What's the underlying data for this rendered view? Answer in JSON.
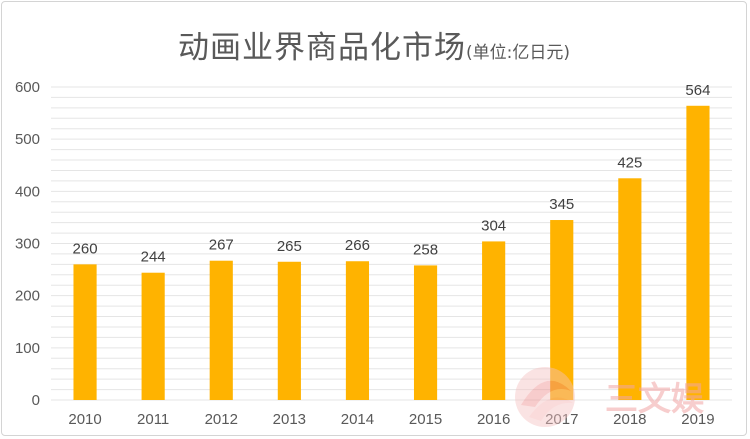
{
  "chart_data": {
    "type": "bar",
    "title": "动画业界商品化市场",
    "subtitle": "(单位:亿日元)",
    "categories": [
      "2010",
      "2011",
      "2012",
      "2013",
      "2014",
      "2015",
      "2016",
      "2017",
      "2018",
      "2019"
    ],
    "values": [
      260,
      244,
      267,
      265,
      266,
      258,
      304,
      345,
      425,
      564
    ],
    "ylim": [
      0,
      600
    ],
    "yticks": [
      0,
      100,
      200,
      300,
      400,
      500,
      600
    ],
    "grid": true,
    "legend": "none",
    "bar_color": "#ffb300",
    "gridline_color": "#e5e5e5"
  },
  "watermark": {
    "text": "三文娱"
  }
}
